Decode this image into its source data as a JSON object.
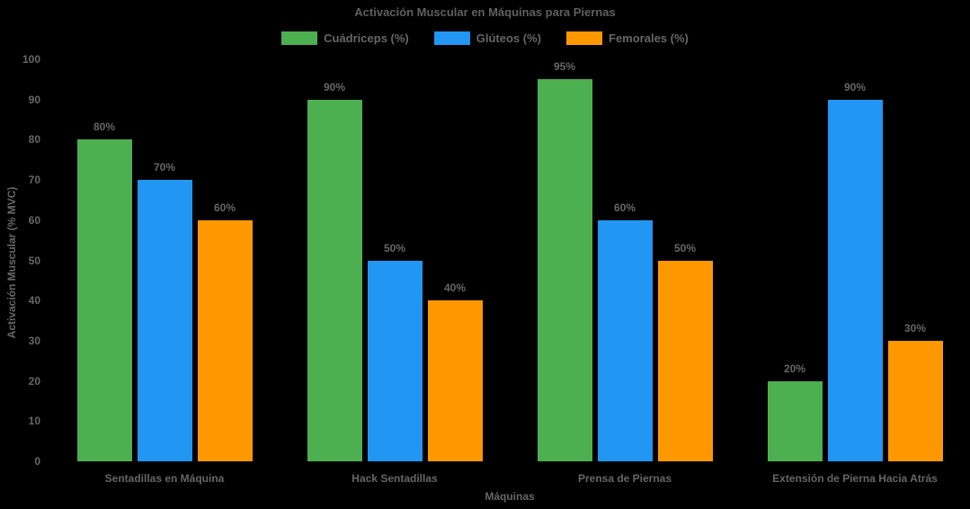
{
  "chart_data": {
    "type": "bar",
    "title": "Activación Muscular en Máquinas para Piernas",
    "xlabel": "Máquinas",
    "ylabel": "Activación Muscular (% MVC)",
    "categories": [
      "Sentadillas en Máquina",
      "Hack Sentadillas",
      "Prensa de Piernas",
      "Extensión de Pierna Hacia Atrás"
    ],
    "series": [
      {
        "name": "Cuádriceps (%)",
        "color": "#4CAF50",
        "values": [
          80,
          90,
          95,
          20
        ]
      },
      {
        "name": "Glúteos (%)",
        "color": "#2196F3",
        "values": [
          70,
          50,
          60,
          90
        ]
      },
      {
        "name": "Femorales (%)",
        "color": "#FF9800",
        "values": [
          60,
          40,
          50,
          30
        ]
      }
    ],
    "value_labels": [
      [
        "80%",
        "90%",
        "95%",
        "20%"
      ],
      [
        "70%",
        "50%",
        "60%",
        "90%"
      ],
      [
        "60%",
        "40%",
        "50%",
        "30%"
      ]
    ],
    "ylim": [
      0,
      100
    ],
    "y_ticks": [
      "0",
      "10",
      "20",
      "30",
      "40",
      "50",
      "60",
      "70",
      "80",
      "90",
      "100"
    ],
    "grid": false,
    "legend_position": "top-center",
    "background_color": "#000000",
    "text_color": "#666666"
  }
}
